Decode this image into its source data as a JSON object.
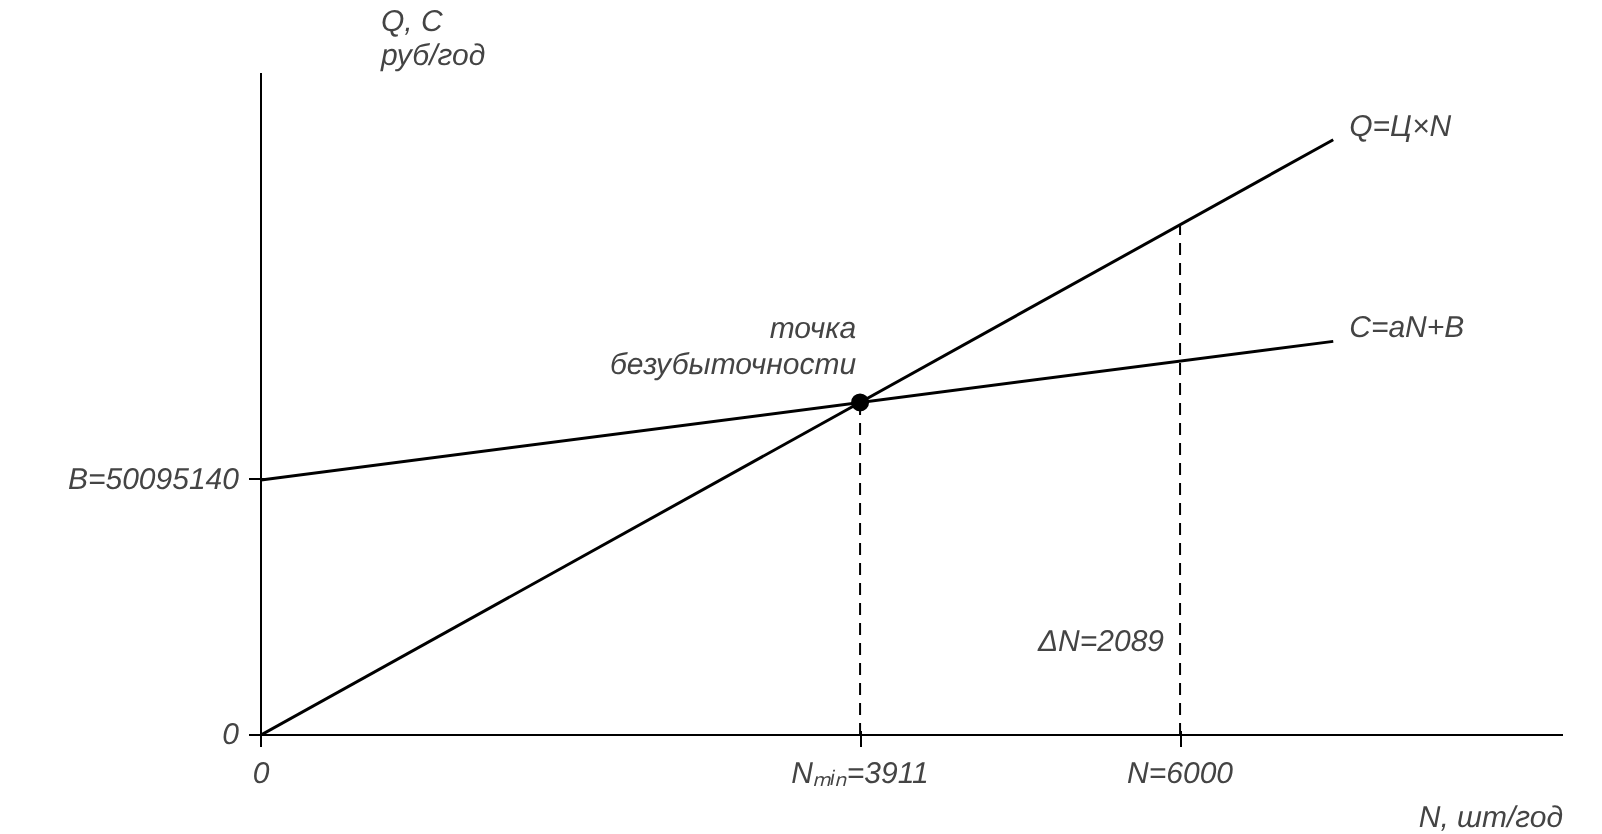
{
  "chart_data": {
    "type": "line",
    "xlabel": "N, шт/год",
    "ylabel": "Q, C\nруб/год",
    "xlim": [
      0,
      8500
    ],
    "ylim": [
      0,
      130000000
    ],
    "xticks": [
      0,
      {
        "value": 3911,
        "label": "Nₘᵢₙ=3911"
      },
      {
        "value": 6000,
        "label": "N=6000"
      }
    ],
    "yticks": [
      0,
      {
        "value": 50095140,
        "label": "B=50095140"
      }
    ],
    "series": [
      {
        "name": "Q=Ц×N",
        "color": "#000000",
        "x": [
          0,
          7000
        ],
        "values": [
          0,
          116900000
        ]
      },
      {
        "name": "C=aN+B",
        "color": "#000000",
        "x": [
          0,
          7000
        ],
        "values": [
          50095140,
          77300000
        ]
      },
      {
        "type": "scatter",
        "marker": "circle",
        "color": "#000000",
        "x": [
          3911
        ],
        "values": [
          65300000
        ]
      }
    ],
    "ref_lines": [
      {
        "axis": "x",
        "value": 3911,
        "line_style": "dashed",
        "color": "#000000"
      },
      {
        "axis": "x",
        "value": 6000,
        "line_style": "dashed",
        "color": "#000000"
      }
    ],
    "annotations": [
      {
        "text": "точка\nбезубыточности",
        "x": 3911,
        "y": 65300000
      },
      "ΔN=2089"
    ],
    "grid": false,
    "legend": false,
    "line_style": "solid"
  }
}
